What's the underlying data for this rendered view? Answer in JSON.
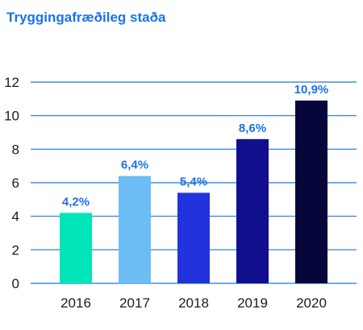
{
  "chart_data": {
    "type": "bar",
    "title": "Tryggingafræðileg staða",
    "categories": [
      "2016",
      "2017",
      "2018",
      "2019",
      "2020"
    ],
    "values": [
      4.2,
      6.4,
      5.4,
      8.6,
      10.9
    ],
    "data_labels": [
      "4,2%",
      "6,4%",
      "5,4%",
      "8,6%",
      "10,9%"
    ],
    "bar_colors": [
      "#00e5b8",
      "#6dbdf5",
      "#2233dd",
      "#120f8e",
      "#06063a"
    ],
    "ylim": [
      0,
      12
    ],
    "yticks": [
      "0",
      "2",
      "4",
      "6",
      "8",
      "10",
      "12"
    ],
    "xlabel": "",
    "ylabel": "",
    "grid": true,
    "legend": "none"
  },
  "colors": {
    "title": "#1a73e8",
    "label": "#1a73e8",
    "grid": "#1a73e8"
  }
}
